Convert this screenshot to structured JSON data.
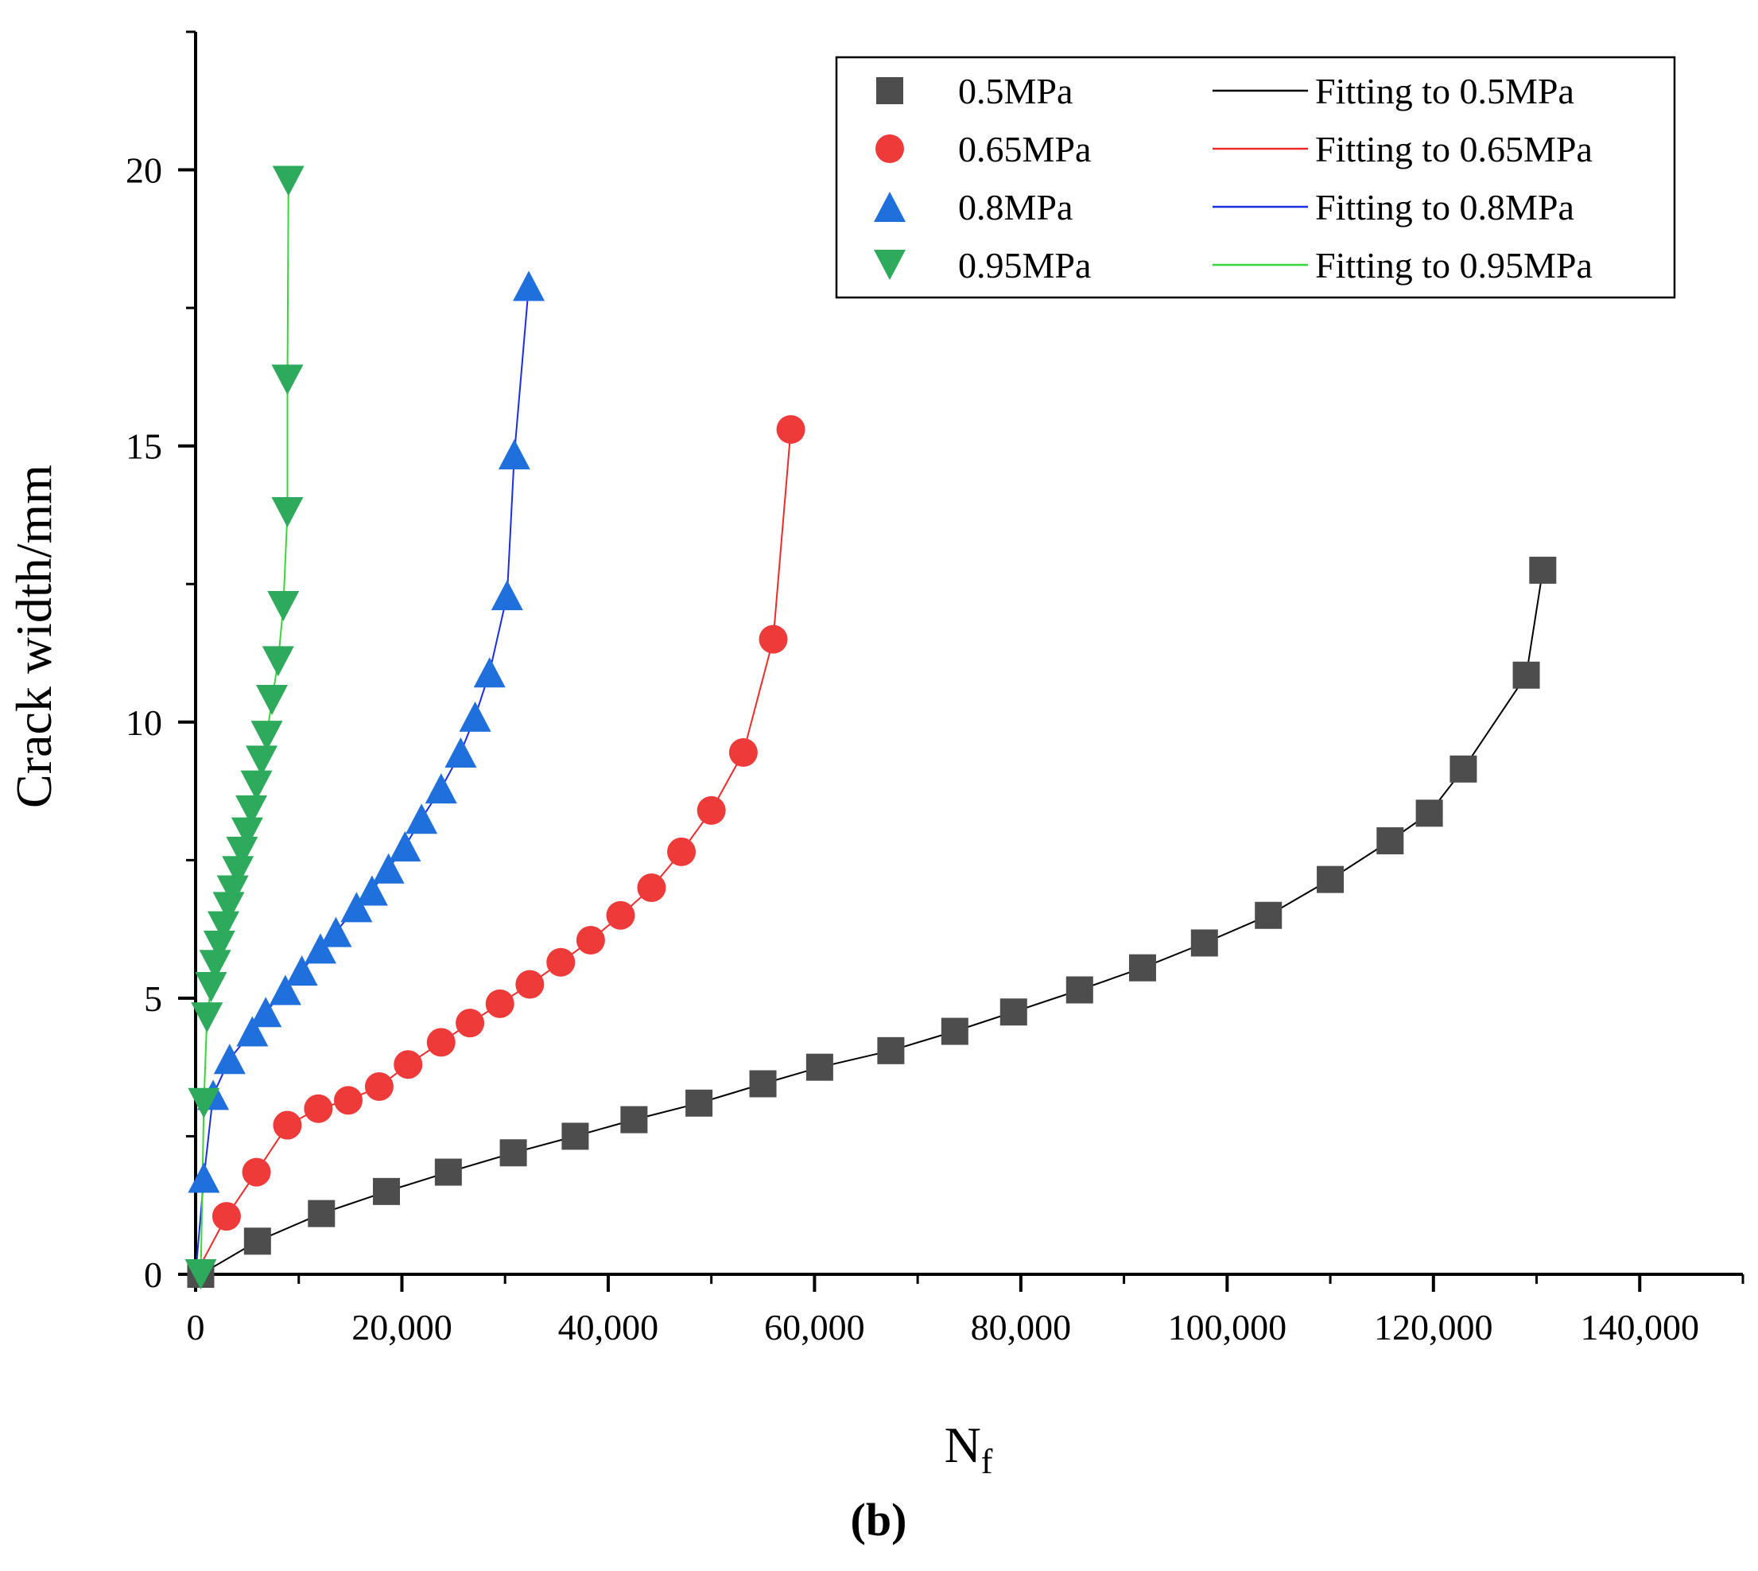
{
  "chart_data": {
    "type": "scatter",
    "panel_label": "b",
    "xlabel_main": "N",
    "xlabel_sub": "f",
    "ylabel": "Crack width/mm",
    "xlim": [
      0,
      150000
    ],
    "ylim": [
      0,
      22.5
    ],
    "xticks": [
      0,
      20000,
      40000,
      60000,
      80000,
      100000,
      120000,
      140000
    ],
    "xtick_labels": [
      "0",
      "20,000",
      "40,000",
      "60,000",
      "80,000",
      "100,000",
      "120,000",
      "140,000"
    ],
    "yticks": [
      0,
      5,
      10,
      15,
      20
    ],
    "ytick_labels": [
      "0",
      "5",
      "10",
      "15",
      "20"
    ],
    "grid": false,
    "legend_position": "top-right",
    "series": [
      {
        "name": "0.5MPa",
        "fit_name": "Fitting to 0.5MPa",
        "marker": "square",
        "color": "#4d4d4d",
        "fit_color": "#000000",
        "x": [
          500,
          6000,
          12200,
          18500,
          24500,
          30800,
          36800,
          42500,
          48800,
          55000,
          60500,
          67400,
          73600,
          79300,
          85700,
          91800,
          97800,
          104000,
          110000,
          115800,
          119600,
          122900,
          129000,
          130600
        ],
        "y": [
          0.0,
          0.6,
          1.1,
          1.5,
          1.85,
          2.2,
          2.5,
          2.8,
          3.1,
          3.45,
          3.75,
          4.05,
          4.4,
          4.75,
          5.15,
          5.55,
          6.0,
          6.5,
          7.15,
          7.85,
          8.35,
          9.15,
          10.85,
          12.75
        ]
      },
      {
        "name": "0.65MPa",
        "fit_name": "Fitting to 0.65MPa",
        "marker": "circle",
        "color": "#ef3a3a",
        "fit_color": "#ef2a2a",
        "x": [
          3000,
          5900,
          8900,
          11900,
          14800,
          17800,
          20600,
          23800,
          26600,
          29500,
          32400,
          35400,
          38300,
          41200,
          44200,
          47100,
          50000,
          53100,
          56000,
          57700
        ],
        "y": [
          1.05,
          1.85,
          2.7,
          3.0,
          3.15,
          3.4,
          3.8,
          4.2,
          4.55,
          4.9,
          5.25,
          5.65,
          6.05,
          6.5,
          7.0,
          7.65,
          8.4,
          9.45,
          11.5,
          15.3
        ]
      },
      {
        "name": "0.8MPa",
        "fit_name": "Fitting to 0.8MPa",
        "marker": "triangle-up",
        "color": "#1f6fdc",
        "fit_color": "#1a2ee0",
        "x": [
          800,
          1700,
          3300,
          5500,
          6800,
          8700,
          10300,
          12100,
          13600,
          15600,
          17100,
          18700,
          20300,
          21900,
          23800,
          25700,
          27100,
          28500,
          30200,
          30900,
          32300
        ],
        "y": [
          1.75,
          3.25,
          3.9,
          4.4,
          4.75,
          5.15,
          5.5,
          5.9,
          6.2,
          6.65,
          6.95,
          7.35,
          7.75,
          8.25,
          8.8,
          9.45,
          10.1,
          10.9,
          12.3,
          14.85,
          17.9
        ]
      },
      {
        "name": "0.95MPa",
        "fit_name": "Fitting to 0.95MPa",
        "marker": "triangle-down",
        "color": "#2eaa5c",
        "fit_color": "#39d639",
        "x": [
          500,
          800,
          1100,
          1500,
          1900,
          2300,
          2700,
          3200,
          3600,
          4100,
          4500,
          5000,
          5400,
          5900,
          6400,
          6900,
          7400,
          8000,
          8500,
          8900,
          8900,
          9000
        ],
        "y": [
          0.0,
          3.1,
          4.65,
          5.2,
          5.6,
          5.95,
          6.3,
          6.65,
          6.95,
          7.3,
          7.65,
          8.0,
          8.4,
          8.85,
          9.3,
          9.75,
          10.4,
          11.1,
          12.1,
          13.8,
          16.2,
          19.8
        ]
      }
    ]
  }
}
